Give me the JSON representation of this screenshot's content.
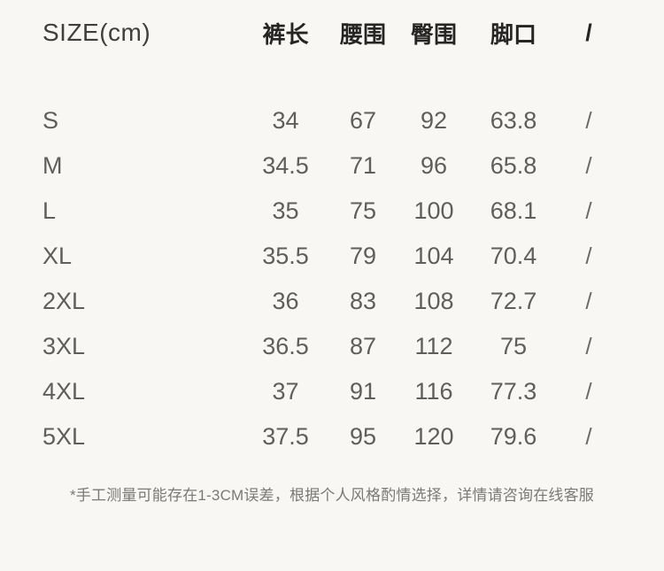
{
  "colors": {
    "background": "#f8f7f4",
    "header_text": "#262524",
    "size_unit_text": "#403f3d",
    "value_text": "#5f5e5c",
    "footnote_text": "#7b7977"
  },
  "table": {
    "size_label": "SIZE(cm)",
    "columns": [
      "裤长",
      "腰围",
      "臀围",
      "脚口",
      "/"
    ],
    "rows": [
      {
        "size": "S",
        "values": [
          "34",
          "67",
          "92",
          "63.8",
          "/"
        ]
      },
      {
        "size": "M",
        "values": [
          "34.5",
          "71",
          "96",
          "65.8",
          "/"
        ]
      },
      {
        "size": "L",
        "values": [
          "35",
          "75",
          "100",
          "68.1",
          "/"
        ]
      },
      {
        "size": "XL",
        "values": [
          "35.5",
          "79",
          "104",
          "70.4",
          "/"
        ]
      },
      {
        "size": "2XL",
        "values": [
          "36",
          "83",
          "108",
          "72.7",
          "/"
        ]
      },
      {
        "size": "3XL",
        "values": [
          "36.5",
          "87",
          "112",
          "75",
          "/"
        ]
      },
      {
        "size": "4XL",
        "values": [
          "37",
          "91",
          "116",
          "77.3",
          "/"
        ]
      },
      {
        "size": "5XL",
        "values": [
          "37.5",
          "95",
          "120",
          "79.6",
          "/"
        ]
      }
    ]
  },
  "footnote": "*手工测量可能存在1-3CM误差，根据个人风格酌情选择，详情请咨询在线客服"
}
